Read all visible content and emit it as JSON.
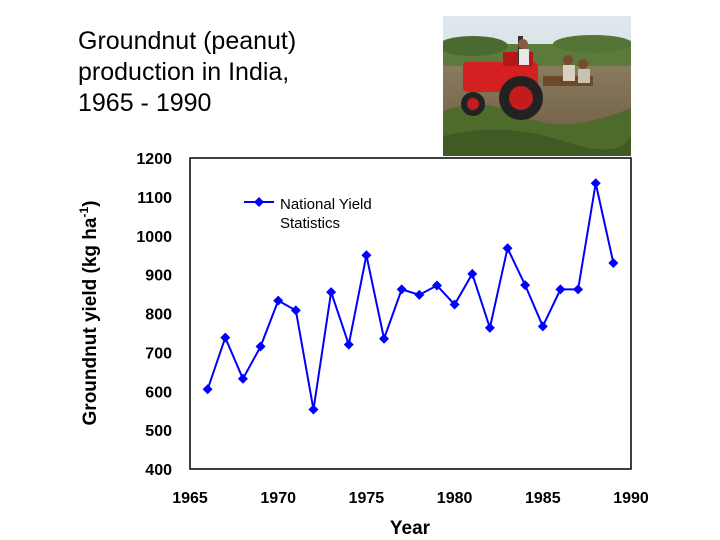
{
  "title_lines": [
    "Groundnut (peanut)",
    "production in India,",
    "1965 - 1990"
  ],
  "photo": {
    "description_icon": "tractor-photo"
  },
  "chart_data": {
    "type": "line",
    "xlabel": "Year",
    "ylabel_main": "Groundnut yield (kg ha",
    "ylabel_sup": "-1",
    "ylabel_end": ")",
    "xlim": [
      1965,
      1990
    ],
    "ylim": [
      400,
      1200
    ],
    "xticks": [
      1965,
      1970,
      1975,
      1980,
      1985,
      1990
    ],
    "yticks": [
      400,
      500,
      600,
      700,
      800,
      900,
      1000,
      1100,
      1200
    ],
    "grid": false,
    "legend_position": "top-left",
    "series": [
      {
        "name": "National Yield Statistics",
        "legend_lines": [
          "National Yield",
          "Statistics"
        ],
        "color": "#0000ff",
        "marker": "diamond",
        "x": [
          1966,
          1967,
          1968,
          1969,
          1970,
          1971,
          1972,
          1973,
          1974,
          1975,
          1976,
          1977,
          1978,
          1979,
          1980,
          1981,
          1982,
          1983,
          1984,
          1985,
          1986,
          1987,
          1988,
          1989
        ],
        "y": [
          605,
          738,
          632,
          715,
          833,
          808,
          553,
          855,
          720,
          950,
          735,
          862,
          848,
          872,
          823,
          902,
          763,
          968,
          873,
          767,
          862,
          862,
          1135,
          930
        ]
      }
    ]
  }
}
